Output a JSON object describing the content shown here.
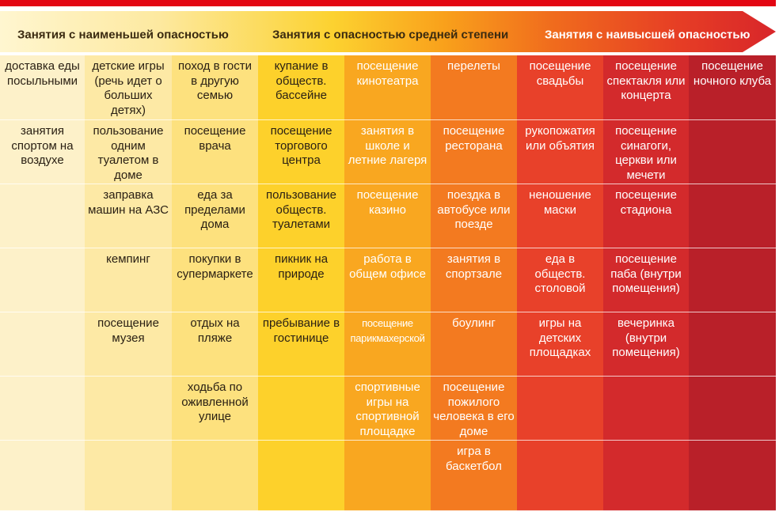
{
  "header": {
    "low_label": "Занятия с наименьшей опасностью",
    "mid_label": "Занятия с опасностью средней степени",
    "high_label": "Занятия с наивысшей опасностью"
  },
  "colors": {
    "level_0": "#fdf1c9",
    "level_1": "#fde9a5",
    "level_2": "#fde17e",
    "level_3": "#fdd12b",
    "level_4": "#f9a720",
    "level_5": "#f37a20",
    "level_6": "#e8412a",
    "level_7": "#d32a2c",
    "level_8": "#b92029",
    "top_bar": "#e30613"
  },
  "columns": [
    [
      "доставка еды посыльными",
      "занятия спортом на воздухе",
      "",
      "",
      "",
      "",
      ""
    ],
    [
      "детские игры (речь идет о больших детях)",
      "пользование одним туалетом в доме",
      "заправка машин на АЗС",
      "кемпинг",
      "посещение музея",
      "",
      ""
    ],
    [
      "поход в гости в другую семью",
      "посещение врача",
      "еда за пределами дома",
      "покупки в супермаркете",
      "отдых на пляже",
      "ходьба по оживленной улице",
      ""
    ],
    [
      "купание в обществ. бассейне",
      "посещение торгового центра",
      "пользование обществ. туалетами",
      "пикник на природе",
      "пребывание в гостинице",
      "",
      ""
    ],
    [
      "посещение кинотеатра",
      "занятия в школе и летние лагеря",
      "посещение казино",
      "работа в общем офисе",
      "посещение парикмахерской",
      "спортивные игры на спортивной площадке",
      ""
    ],
    [
      "перелеты",
      "посещение ресторана",
      "поездка в автобусе или поезде",
      "занятия в спортзале",
      "боулинг",
      "посещение пожилого человека в его доме",
      "игра в баскетбол"
    ],
    [
      "посещение свадьбы",
      "рукопожатия или объятия",
      "неношение маски",
      "еда в обществ. столовой",
      "игры на детских площадках",
      "",
      ""
    ],
    [
      "посещение спектакля или концерта",
      "посещение синагоги, церкви или мечети",
      "посещение стадиона",
      "посещение паба (внутри помещения)",
      "вечеринка (внутри помещения)",
      "",
      ""
    ],
    [
      "посещение ночного клуба",
      "",
      "",
      "",
      "",
      "",
      ""
    ]
  ]
}
